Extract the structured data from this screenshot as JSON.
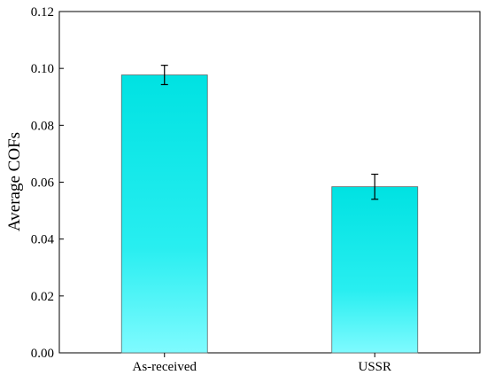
{
  "chart_data": {
    "type": "bar",
    "categories": [
      "As-received",
      "USSR"
    ],
    "values": [
      0.0977,
      0.0584
    ],
    "errors": [
      0.0034,
      0.0044
    ],
    "ylabel": "Average COFs",
    "xlabel": "",
    "ylim": [
      0,
      0.12
    ],
    "yticks": [
      "0.00",
      "0.02",
      "0.04",
      "0.06",
      "0.08",
      "0.10",
      "0.12"
    ],
    "grid": false,
    "colors": {
      "bar_top": "#00e2e2",
      "bar_bottom": "#7ffbff",
      "bar_stroke": "#5a6a6a"
    }
  }
}
